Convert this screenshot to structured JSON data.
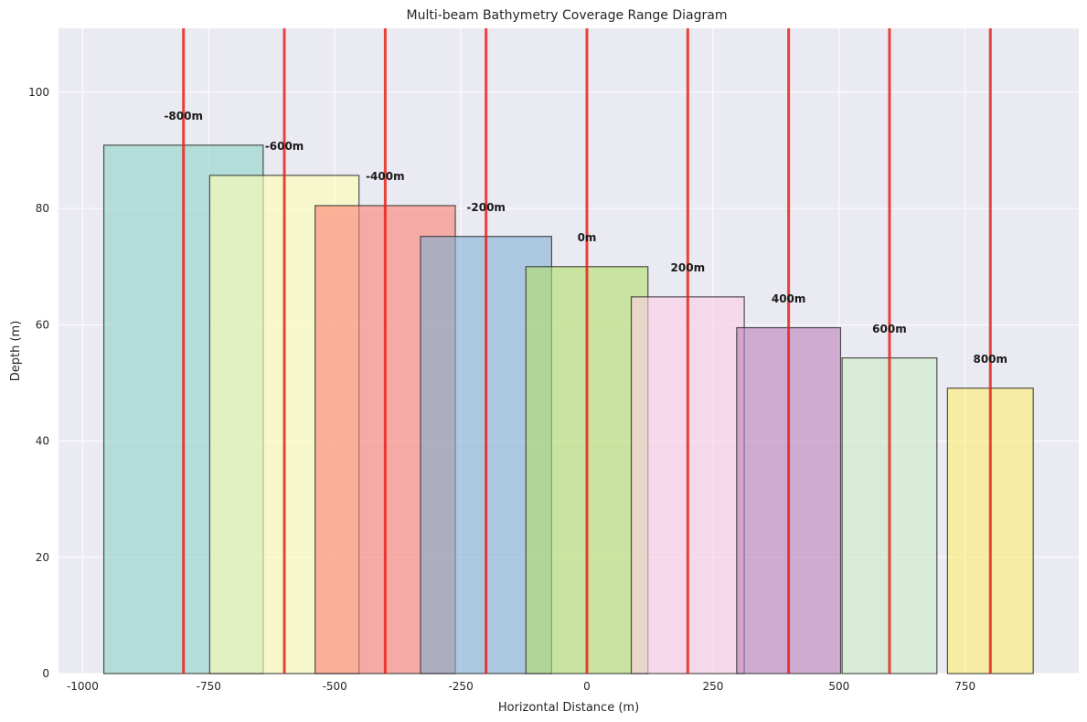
{
  "chart_data": {
    "type": "bar",
    "title": "Multi-beam Bathymetry Coverage Range Diagram",
    "xlabel": "Horizontal Distance (m)",
    "ylabel": "Depth (m)",
    "xlim": [
      -1080,
      1955
    ],
    "ylim": [
      0,
      111
    ],
    "grid": true,
    "xticks": [
      -1000,
      -750,
      -500,
      -250,
      0,
      250,
      500,
      750
    ],
    "xtick_labels": [
      "-1000",
      "-750",
      "-500",
      "-250",
      "0",
      "250",
      "500",
      "750"
    ],
    "yticks": [
      0,
      20,
      40,
      60,
      80,
      100
    ],
    "ytick_labels": [
      "0",
      "20",
      "40",
      "60",
      "80",
      "100"
    ],
    "colors": {
      "background": "#eaeaf2",
      "grid": "#ffffff",
      "survey_line": "#e8221a",
      "bar_edge": "#333333"
    },
    "series": [
      {
        "label": "-800m",
        "center": -800,
        "x_start": -958,
        "x_end": -642,
        "depth": 90.9,
        "color": "#8dd3c7"
      },
      {
        "label": "-600m",
        "center": -600,
        "x_start": -748,
        "x_end": -452,
        "depth": 85.7,
        "color": "#ffffb3"
      },
      {
        "label": "-400m",
        "center": -400,
        "x_start": -539,
        "x_end": -261,
        "depth": 80.5,
        "color": "#fb8072"
      },
      {
        "label": "-200m",
        "center": -200,
        "x_start": -330,
        "x_end": -70,
        "depth": 75.2,
        "color": "#80b1d3"
      },
      {
        "label": "0m",
        "center": 0,
        "x_start": -121,
        "x_end": 121,
        "depth": 70.0,
        "color": "#b3de69"
      },
      {
        "label": "200m",
        "center": 200,
        "x_start": 88,
        "x_end": 312,
        "depth": 64.8,
        "color": "#fccde5"
      },
      {
        "label": "400m",
        "center": 400,
        "x_start": 297,
        "x_end": 503,
        "depth": 59.5,
        "color": "#bc80bd"
      },
      {
        "label": "600m",
        "center": 600,
        "x_start": 506,
        "x_end": 694,
        "depth": 54.3,
        "color": "#ccebc5"
      },
      {
        "label": "800m",
        "center": 800,
        "x_start": 715,
        "x_end": 885,
        "depth": 49.1,
        "color": "#ffed6f"
      }
    ]
  }
}
